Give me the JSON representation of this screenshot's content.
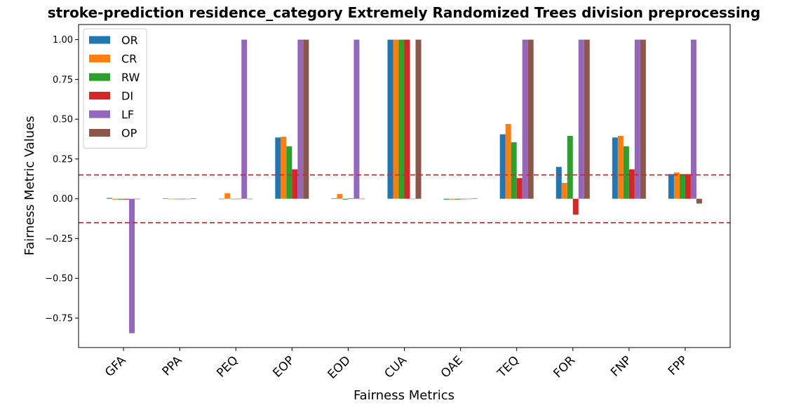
{
  "chart_data": {
    "type": "bar",
    "title": "stroke-prediction residence_category Extremely Randomized Trees division preprocessing",
    "xlabel": "Fairness Metrics",
    "ylabel": "Fairness Metric Values",
    "categories": [
      "GFA",
      "PPA",
      "PEQ",
      "EOP",
      "EOD",
      "CUA",
      "OAE",
      "TEQ",
      "FOR",
      "FNP",
      "FPP"
    ],
    "yticks": [
      1.0,
      0.75,
      0.5,
      0.25,
      0.0,
      -0.25,
      -0.5,
      -0.75
    ],
    "ytick_labels": [
      "1.00",
      "0.75",
      "0.50",
      "0.25",
      "0.00",
      "−0.25",
      "−0.50",
      "−0.75"
    ],
    "ylim": [
      -0.935,
      1.095
    ],
    "reference_lines": [
      0.15,
      -0.15
    ],
    "reference_line_color": "#d62728",
    "legend_position": "upper-left",
    "grid": false,
    "series": [
      {
        "name": "OR",
        "color": "#1f77b4",
        "values": [
          0.005,
          0.003,
          0.0,
          0.385,
          0.003,
          1.0,
          -0.005,
          0.405,
          0.2,
          0.385,
          0.155
        ]
      },
      {
        "name": "CR",
        "color": "#ff7f0e",
        "values": [
          -0.005,
          -0.003,
          0.035,
          0.39,
          0.03,
          1.0,
          -0.005,
          0.47,
          0.1,
          0.395,
          0.165
        ]
      },
      {
        "name": "RW",
        "color": "#2ca02c",
        "values": [
          -0.005,
          -0.003,
          0.0,
          0.33,
          -0.005,
          1.0,
          -0.005,
          0.355,
          0.395,
          0.33,
          0.155
        ]
      },
      {
        "name": "DI",
        "color": "#d62728",
        "values": [
          -0.005,
          -0.003,
          0.0,
          0.185,
          0.003,
          1.0,
          -0.003,
          0.13,
          -0.1,
          0.185,
          0.155
        ]
      },
      {
        "name": "LF",
        "color": "#9467bd",
        "values": [
          -0.845,
          0.0,
          1.0,
          1.0,
          1.0,
          0.0,
          0.0,
          1.0,
          1.0,
          1.0,
          1.0
        ]
      },
      {
        "name": "OP",
        "color": "#8c564b",
        "values": [
          0.0,
          0.003,
          0.0,
          1.0,
          0.0,
          1.0,
          0.003,
          1.0,
          1.0,
          1.0,
          -0.03
        ]
      }
    ]
  }
}
